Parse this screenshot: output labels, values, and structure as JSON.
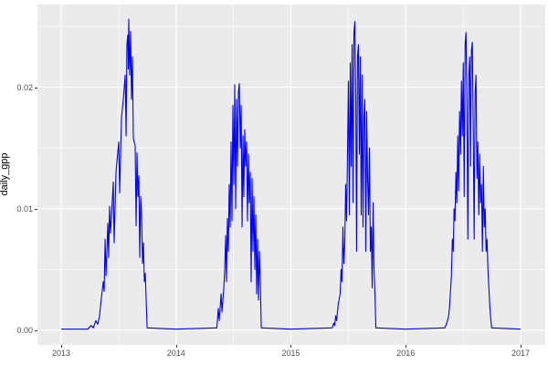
{
  "figure": {
    "background": "#FFFFFF",
    "panel_background": "#EBEBEB",
    "grid_color": "#FFFFFF",
    "tick_color": "#333333",
    "tick_label_color": "#4D4D4D",
    "axis_title_color": "#000000",
    "line_color": "#0000FF"
  },
  "chart_data": {
    "type": "line",
    "title": "",
    "xlabel": "",
    "ylabel": "daily_gpp",
    "grid": true,
    "legend": "none",
    "xlim": [
      2012.793,
      2017.215
    ],
    "ylim": [
      -0.0012,
      0.0268
    ],
    "x_ticks": [
      2013,
      2014,
      2015,
      2016,
      2017
    ],
    "x_tick_labels": [
      "2013",
      "2014",
      "2015",
      "2016",
      "2017"
    ],
    "x_minor_ticks": [
      2013.5,
      2014.5,
      2015.5,
      2016.5
    ],
    "y_ticks": [
      0.0,
      0.01,
      0.02
    ],
    "y_tick_labels": [
      "0.00",
      "0.01",
      "0.02"
    ],
    "y_minor_ticks": [
      0.005,
      0.015,
      0.025
    ],
    "series": [
      {
        "name": "daily_gpp",
        "color": "#0000FF",
        "points": [
          [
            2013.0,
            0.0001
          ],
          [
            2013.23,
            0.0001
          ],
          [
            2013.262,
            0.0004
          ],
          [
            2013.28,
            0.0002
          ],
          [
            2013.302,
            0.0008
          ],
          [
            2013.318,
            0.0005
          ],
          [
            2013.334,
            0.0012
          ],
          [
            2013.342,
            0.002
          ],
          [
            2013.366,
            0.004
          ],
          [
            2013.374,
            0.0032
          ],
          [
            2013.382,
            0.0075
          ],
          [
            2013.39,
            0.0045
          ],
          [
            2013.406,
            0.0088
          ],
          [
            2013.413,
            0.006
          ],
          [
            2013.421,
            0.0102
          ],
          [
            2013.429,
            0.008
          ],
          [
            2013.437,
            0.0092
          ],
          [
            2013.453,
            0.0122
          ],
          [
            2013.461,
            0.0072
          ],
          [
            2013.477,
            0.013
          ],
          [
            2013.493,
            0.0147
          ],
          [
            2013.501,
            0.0155
          ],
          [
            2013.509,
            0.0113
          ],
          [
            2013.525,
            0.0175
          ],
          [
            2013.541,
            0.019
          ],
          [
            2013.557,
            0.021
          ],
          [
            2013.565,
            0.016
          ],
          [
            2013.572,
            0.0235
          ],
          [
            2013.58,
            0.0243
          ],
          [
            2013.584,
            0.0215
          ],
          [
            2013.588,
            0.0256
          ],
          [
            2013.596,
            0.021
          ],
          [
            2013.604,
            0.0246
          ],
          [
            2013.612,
            0.019
          ],
          [
            2013.62,
            0.0225
          ],
          [
            2013.628,
            0.0158
          ],
          [
            2013.644,
            0.0152
          ],
          [
            2013.652,
            0.0086
          ],
          [
            2013.66,
            0.0146
          ],
          [
            2013.668,
            0.011
          ],
          [
            2013.676,
            0.0127
          ],
          [
            2013.684,
            0.006
          ],
          [
            2013.692,
            0.011
          ],
          [
            2013.7,
            0.0094
          ],
          [
            2013.708,
            0.0055
          ],
          [
            2013.716,
            0.0072
          ],
          [
            2013.724,
            0.004
          ],
          [
            2013.732,
            0.0047
          ],
          [
            2013.74,
            0.0024
          ],
          [
            2013.748,
            0.0002
          ],
          [
            2014.0,
            0.0001
          ],
          [
            2014.355,
            0.0002
          ],
          [
            2014.368,
            0.0018
          ],
          [
            2014.376,
            0.0008
          ],
          [
            2014.392,
            0.003
          ],
          [
            2014.4,
            0.0015
          ],
          [
            2014.416,
            0.0035
          ],
          [
            2014.424,
            0.005
          ],
          [
            2014.432,
            0.0078
          ],
          [
            2014.439,
            0.004
          ],
          [
            2014.447,
            0.0092
          ],
          [
            2014.455,
            0.0065
          ],
          [
            2014.463,
            0.012
          ],
          [
            2014.471,
            0.0085
          ],
          [
            2014.479,
            0.0155
          ],
          [
            2014.487,
            0.009
          ],
          [
            2014.495,
            0.0185
          ],
          [
            2014.503,
            0.012
          ],
          [
            2014.511,
            0.0202
          ],
          [
            2014.519,
            0.01
          ],
          [
            2014.527,
            0.019
          ],
          [
            2014.535,
            0.0135
          ],
          [
            2014.543,
            0.0196
          ],
          [
            2014.551,
            0.0203
          ],
          [
            2014.559,
            0.015
          ],
          [
            2014.567,
            0.0185
          ],
          [
            2014.575,
            0.0085
          ],
          [
            2014.583,
            0.016
          ],
          [
            2014.59,
            0.011
          ],
          [
            2014.598,
            0.0165
          ],
          [
            2014.606,
            0.0135
          ],
          [
            2014.614,
            0.0155
          ],
          [
            2014.622,
            0.009
          ],
          [
            2014.63,
            0.0145
          ],
          [
            2014.638,
            0.0105
          ],
          [
            2014.646,
            0.013
          ],
          [
            2014.654,
            0.004
          ],
          [
            2014.662,
            0.0125
          ],
          [
            2014.67,
            0.0065
          ],
          [
            2014.678,
            0.011
          ],
          [
            2014.686,
            0.005
          ],
          [
            2014.694,
            0.0095
          ],
          [
            2014.702,
            0.003
          ],
          [
            2014.71,
            0.0075
          ],
          [
            2014.718,
            0.0025
          ],
          [
            2014.726,
            0.0065
          ],
          [
            2014.734,
            0.004
          ],
          [
            2014.742,
            0.0002
          ],
          [
            2015.0,
            0.0001
          ],
          [
            2015.36,
            0.0002
          ],
          [
            2015.374,
            0.0006
          ],
          [
            2015.382,
            0.0004
          ],
          [
            2015.39,
            0.0012
          ],
          [
            2015.398,
            0.0008
          ],
          [
            2015.413,
            0.0022
          ],
          [
            2015.429,
            0.003
          ],
          [
            2015.437,
            0.005
          ],
          [
            2015.445,
            0.004
          ],
          [
            2015.453,
            0.0085
          ],
          [
            2015.461,
            0.0055
          ],
          [
            2015.469,
            0.007
          ],
          [
            2015.477,
            0.012
          ],
          [
            2015.485,
            0.009
          ],
          [
            2015.493,
            0.0145
          ],
          [
            2015.501,
            0.0205
          ],
          [
            2015.509,
            0.0095
          ],
          [
            2015.517,
            0.022
          ],
          [
            2015.525,
            0.0135
          ],
          [
            2015.533,
            0.0235
          ],
          [
            2015.541,
            0.0105
          ],
          [
            2015.549,
            0.0245
          ],
          [
            2015.557,
            0.0254
          ],
          [
            2015.565,
            0.019
          ],
          [
            2015.572,
            0.0065
          ],
          [
            2015.58,
            0.0225
          ],
          [
            2015.588,
            0.0235
          ],
          [
            2015.596,
            0.0145
          ],
          [
            2015.604,
            0.0225
          ],
          [
            2015.612,
            0.0095
          ],
          [
            2015.62,
            0.021
          ],
          [
            2015.628,
            0.0085
          ],
          [
            2015.636,
            0.0175
          ],
          [
            2015.644,
            0.019
          ],
          [
            2015.652,
            0.0065
          ],
          [
            2015.66,
            0.018
          ],
          [
            2015.668,
            0.0125
          ],
          [
            2015.676,
            0.0095
          ],
          [
            2015.684,
            0.015
          ],
          [
            2015.692,
            0.0065
          ],
          [
            2015.7,
            0.0085
          ],
          [
            2015.708,
            0.0035
          ],
          [
            2015.716,
            0.0105
          ],
          [
            2015.724,
            0.005
          ],
          [
            2015.732,
            0.003
          ],
          [
            2015.74,
            0.0002
          ],
          [
            2016.0,
            0.0001
          ],
          [
            2016.34,
            0.0002
          ],
          [
            2016.358,
            0.0006
          ],
          [
            2016.374,
            0.0012
          ],
          [
            2016.382,
            0.002
          ],
          [
            2016.398,
            0.0045
          ],
          [
            2016.406,
            0.0075
          ],
          [
            2016.414,
            0.0065
          ],
          [
            2016.421,
            0.01
          ],
          [
            2016.429,
            0.009
          ],
          [
            2016.437,
            0.013
          ],
          [
            2016.445,
            0.0105
          ],
          [
            2016.453,
            0.016
          ],
          [
            2016.461,
            0.0115
          ],
          [
            2016.469,
            0.018
          ],
          [
            2016.477,
            0.0145
          ],
          [
            2016.485,
            0.0205
          ],
          [
            2016.493,
            0.016
          ],
          [
            2016.501,
            0.022
          ],
          [
            2016.509,
            0.011
          ],
          [
            2016.517,
            0.0235
          ],
          [
            2016.525,
            0.0245
          ],
          [
            2016.533,
            0.0185
          ],
          [
            2016.541,
            0.0075
          ],
          [
            2016.549,
            0.021
          ],
          [
            2016.557,
            0.0225
          ],
          [
            2016.565,
            0.0135
          ],
          [
            2016.572,
            0.023
          ],
          [
            2016.58,
            0.0237
          ],
          [
            2016.588,
            0.0165
          ],
          [
            2016.596,
            0.0075
          ],
          [
            2016.604,
            0.0195
          ],
          [
            2016.612,
            0.021
          ],
          [
            2016.62,
            0.0125
          ],
          [
            2016.628,
            0.0155
          ],
          [
            2016.636,
            0.0095
          ],
          [
            2016.644,
            0.0145
          ],
          [
            2016.652,
            0.0105
          ],
          [
            2016.66,
            0.012
          ],
          [
            2016.668,
            0.0065
          ],
          [
            2016.676,
            0.0135
          ],
          [
            2016.684,
            0.0085
          ],
          [
            2016.692,
            0.01
          ],
          [
            2016.7,
            0.0065
          ],
          [
            2016.708,
            0.0075
          ],
          [
            2016.716,
            0.005
          ],
          [
            2016.724,
            0.0035
          ],
          [
            2016.732,
            0.002
          ],
          [
            2016.74,
            0.001
          ],
          [
            2016.748,
            0.0002
          ],
          [
            2017.0,
            0.0001
          ]
        ]
      }
    ]
  }
}
